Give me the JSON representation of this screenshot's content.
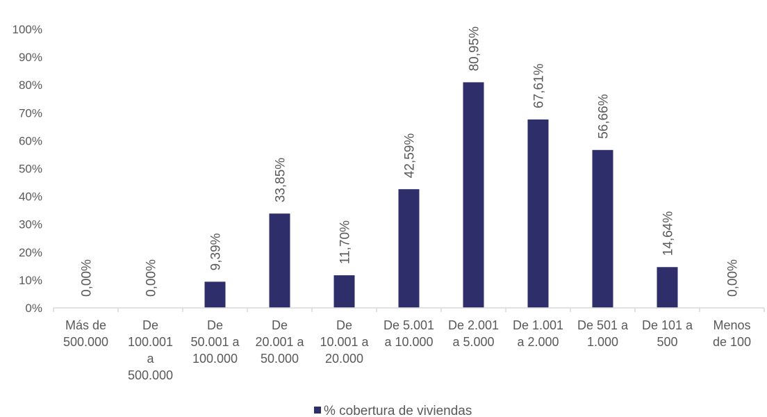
{
  "chart_data": {
    "type": "bar",
    "ylim": [
      0,
      100
    ],
    "yticks": [
      "0%",
      "10%",
      "20%",
      "30%",
      "40%",
      "50%",
      "60%",
      "70%",
      "80%",
      "90%",
      "100%"
    ],
    "grid": false,
    "legend_position": "bottom",
    "series": [
      {
        "name": "% cobertura de viviendas",
        "color": "#2e2e6b",
        "values": [
          0.0,
          0.0,
          9.39,
          33.85,
          11.7,
          42.59,
          80.95,
          67.61,
          56.66,
          14.64,
          0.0
        ],
        "labels": [
          "0,00%",
          "0,00%",
          "9,39%",
          "33,85%",
          "11,70%",
          "42,59%",
          "80,95%",
          "67,61%",
          "56,66%",
          "14,64%",
          "0,00%"
        ]
      }
    ],
    "categories": [
      [
        "Más de",
        "500.000"
      ],
      [
        "De",
        "100.001",
        "a",
        "500.000"
      ],
      [
        "De",
        "50.001 a",
        "100.000"
      ],
      [
        "De",
        "20.001 a",
        "50.000"
      ],
      [
        "De",
        "10.001 a",
        "20.000"
      ],
      [
        "De 5.001",
        "a 10.000"
      ],
      [
        "De 2.001",
        "a 5.000"
      ],
      [
        "De 1.001",
        "a 2.000"
      ],
      [
        "De 501 a",
        "1.000"
      ],
      [
        "De 101 a",
        "500"
      ],
      [
        "Menos",
        "de 100"
      ]
    ]
  }
}
